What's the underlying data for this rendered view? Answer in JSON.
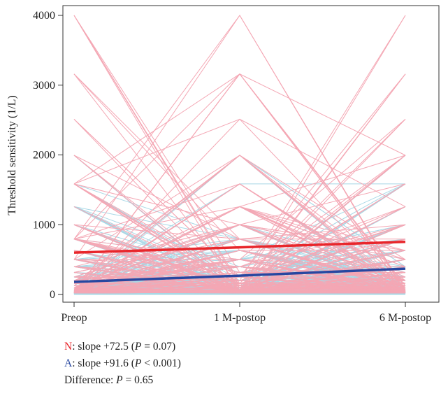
{
  "chart_data": {
    "type": "line",
    "x": [
      "Preop",
      "1 M-postop",
      "6 M-postop"
    ],
    "ylabel": "Threshold sensitivity (1/L)",
    "ylim": [
      0,
      4000
    ],
    "yticks": [
      0,
      1000,
      2000,
      3000,
      4000
    ],
    "grid": false,
    "legend_position": "bottom",
    "series": [
      {
        "name": "N",
        "color": "#e8262b",
        "individual_color": "#f4a7b4",
        "individual_levels": [
          4000,
          3160,
          2512,
          1995,
          1585,
          1259,
          1000,
          794,
          631,
          501,
          398,
          316,
          251,
          200,
          158,
          126,
          100,
          79,
          63,
          50,
          40,
          32,
          25,
          20
        ],
        "trend": [
          600,
          675,
          755
        ]
      },
      {
        "name": "A",
        "color": "#2747a0",
        "individual_color": "#a9d8e6",
        "individual_levels": [
          1995,
          1585,
          1259,
          1000,
          794,
          631,
          501,
          398,
          316,
          251,
          200,
          158,
          126,
          100,
          79,
          63,
          50,
          40,
          32,
          25,
          20,
          16,
          10,
          0
        ],
        "trend": [
          180,
          270,
          370
        ]
      }
    ],
    "annotations": [
      {
        "label": "N",
        "color": "#e8262b",
        "text_before": ": slope +72.5 (",
        "p_label": "P",
        "text_after": " = 0.07)"
      },
      {
        "label": "A",
        "color": "#2747a0",
        "text_before": ": slope +91.6 (",
        "p_label": "P",
        "text_after": " < 0.001)"
      },
      {
        "label": "Difference",
        "color": "#222222",
        "text_before": ": ",
        "p_label": "P",
        "text_after": " = 0.65"
      }
    ]
  }
}
